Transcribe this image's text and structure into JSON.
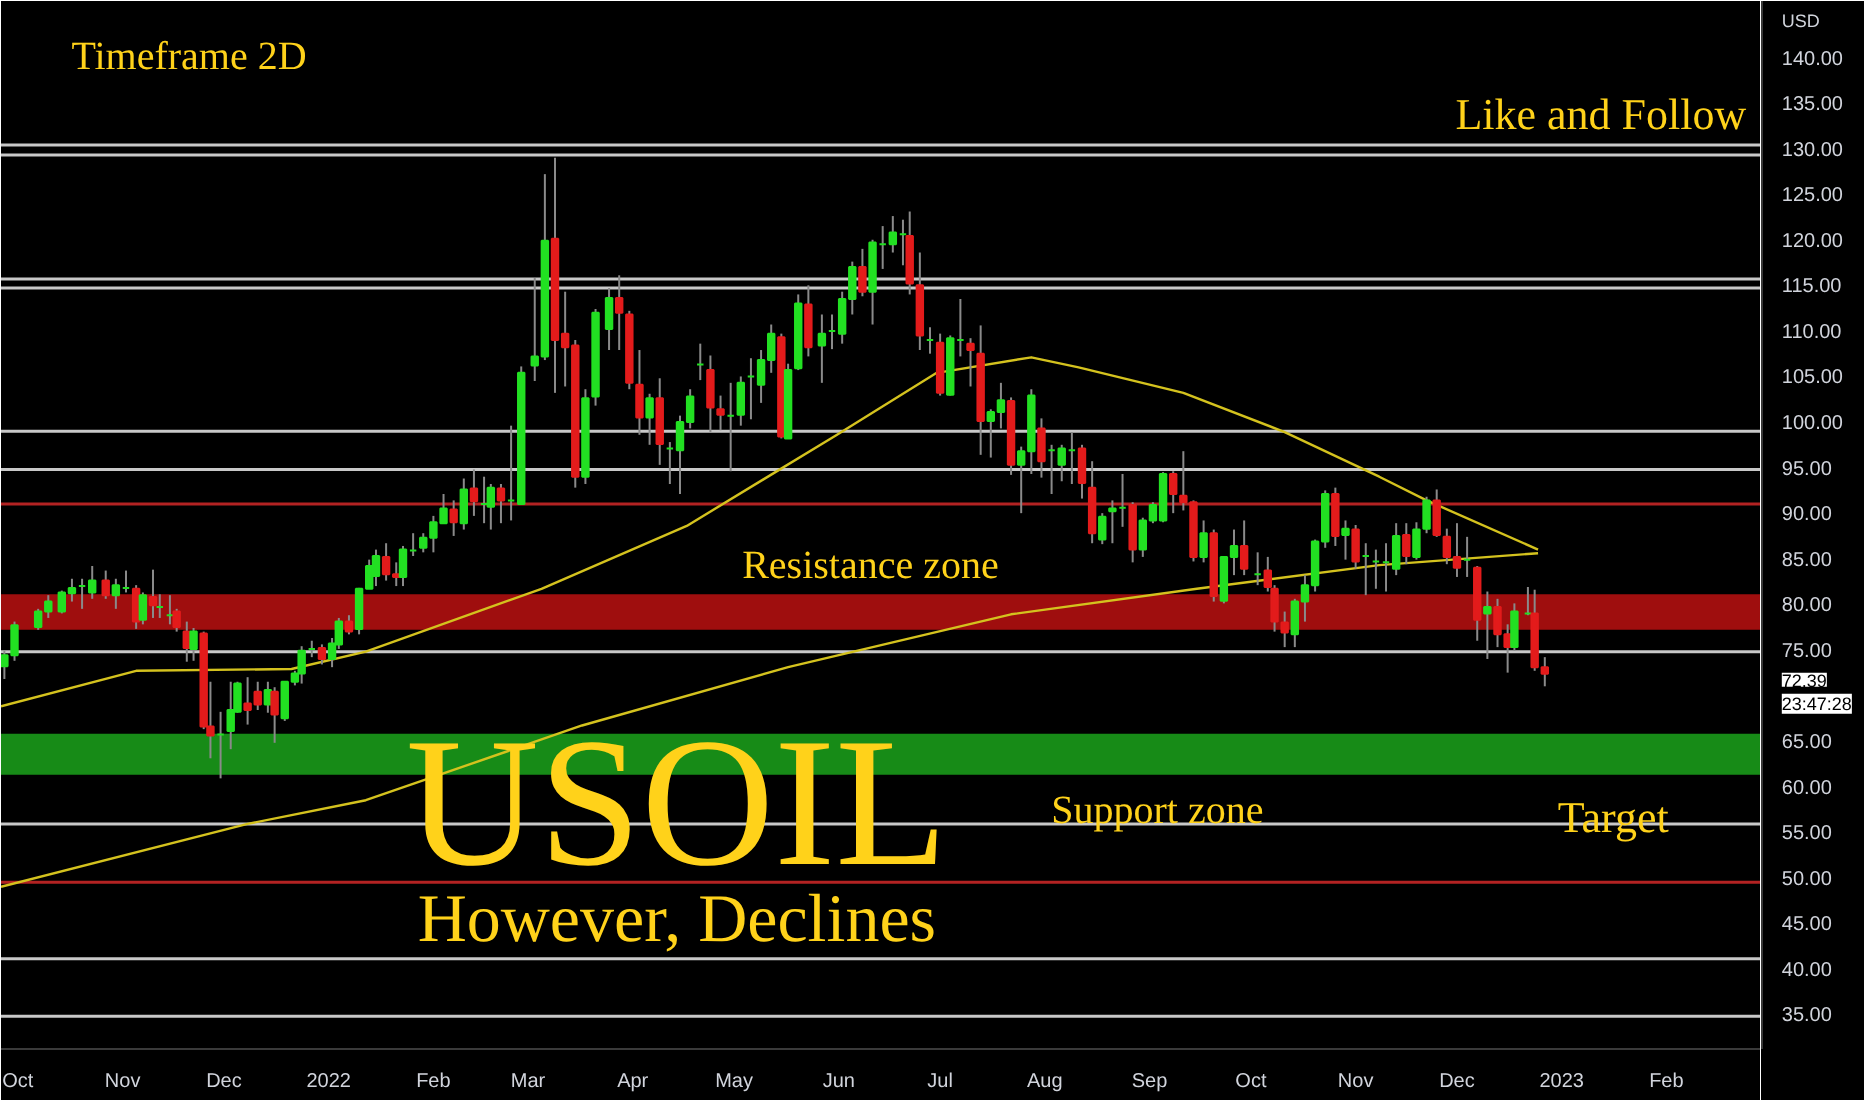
{
  "chart_data": {
    "type": "candlestick",
    "title": "USOIL",
    "subtitle": "However, Declines",
    "ylabel": "USD",
    "annotations": [
      "Timeframe 2D",
      "Like and Follow",
      "Target",
      "72.39",
      "23:47:28"
    ],
    "colors": [
      "#22e022",
      "#22e022",
      "#22e022",
      "#22e022",
      "#22e022",
      "#22e022",
      "#22e022",
      "#22e022",
      "#e31b1b",
      "#22e022",
      "#22e022",
      "#e31b1b",
      "#22e022",
      "#e31b1b",
      "#22e022",
      "#22e022",
      "#e31b1b",
      "#e31b1b",
      "#22e022",
      "#e31b1b",
      "#e31b1b",
      "#22e022",
      "#22e022",
      "#22e022",
      "#e31b1b",
      "#e31b1b",
      "#22e022",
      "#e31b1b",
      "#22e022",
      "#22e022",
      "#22e022",
      "#22e022",
      "#e31b1b",
      "#22e022",
      "#22e022",
      "#e31b1b",
      "#22e022",
      "#22e022",
      "#22e022",
      "#e31b1b",
      "#e31b1b",
      "#22e022",
      "#22e022",
      "#22e022",
      "#22e022",
      "#22e022",
      "#e31b1b",
      "#22e022",
      "#e31b1b",
      "#22e022",
      "#22e022",
      "#e31b1b",
      "#22e022",
      "#22e022",
      "#22e022",
      "#22e022",
      "#e31b1b",
      "#e31b1b",
      "#e31b1b",
      "#22e022",
      "#22e022",
      "#22e022",
      "#e31b1b",
      "#e31b1b",
      "#e31b1b",
      "#22e022",
      "#e31b1b",
      "#22e022",
      "#22e022",
      "#22e022",
      "#22e022",
      "#e31b1b",
      "#e31b1b",
      "#22e022",
      "#22e022",
      "#22e022",
      "#22e022",
      "#22e022",
      "#e31b1b",
      "#22e022",
      "#22e022",
      "#e31b1b",
      "#22e022",
      "#22e022",
      "#22e022",
      "#22e022",
      "#e31b1b",
      "#22e022",
      "#22e022",
      "#22e022",
      "#22e022",
      "#e31b1b",
      "#e31b1b",
      "#22e022",
      "#e31b1b",
      "#22e022",
      "#22e022",
      "#e31b1b",
      "#e31b1b",
      "#22e022",
      "#22e022",
      "#e31b1b",
      "#22e022",
      "#22e022",
      "#e31b1b",
      "#22e022",
      "#22e022",
      "#22e022",
      "#e31b1b",
      "#e31b1b",
      "#22e022",
      "#22e022",
      "#22e022",
      "#e31b1b",
      "#22e022",
      "#22e022",
      "#22e022",
      "#e31b1b",
      "#e31b1b",
      "#e31b1b",
      "#22e022",
      "#e31b1b",
      "#22e022",
      "#22e022",
      "#e31b1b",
      "#22e022",
      "#e31b1b",
      "#e31b1b",
      "#e31b1b",
      "#22e022",
      "#22e022",
      "#22e022",
      "#22e022",
      "#e31b1b",
      "#22e022",
      "#e31b1b",
      "#22e022",
      "#22e022",
      "#22e022",
      "#22e022",
      "#e31b1b",
      "#22e022",
      "#22e022",
      "#e31b1b",
      "#e31b1b",
      "#e31b1b",
      "#22e022",
      "#e31b1b",
      "#22e022",
      "#e31b1b",
      "#e31b1b",
      "#22e022",
      "#22e022",
      "#e31b1b",
      "#e31b1b"
    ],
    "xlim": [
      "2021-09-26",
      "2023-03-01"
    ],
    "ylim": [
      31.2,
      146.2
    ],
    "xticks": [
      {
        "value": "2021-10-01",
        "label": "Oct"
      },
      {
        "value": "2021-11-01",
        "label": "Nov"
      },
      {
        "value": "2021-12-01",
        "label": "Dec"
      },
      {
        "value": "2022-01-01",
        "label": "2022"
      },
      {
        "value": "2022-02-01",
        "label": "Feb"
      },
      {
        "value": "2022-03-01",
        "label": "Mar"
      },
      {
        "value": "2022-04-01",
        "label": "Apr"
      },
      {
        "value": "2022-05-01",
        "label": "May"
      },
      {
        "value": "2022-06-01",
        "label": "Jun"
      },
      {
        "value": "2022-07-01",
        "label": "Jul"
      },
      {
        "value": "2022-08-01",
        "label": "Aug"
      },
      {
        "value": "2022-09-01",
        "label": "Sep"
      },
      {
        "value": "2022-10-01",
        "label": "Oct"
      },
      {
        "value": "2022-11-01",
        "label": "Nov"
      },
      {
        "value": "2022-12-01",
        "label": "Dec"
      },
      {
        "value": "2023-01-01",
        "label": "2023"
      },
      {
        "value": "2023-02-01",
        "label": "Feb"
      }
    ],
    "yticks": [
      {
        "value": 35,
        "label": "35.00"
      },
      {
        "value": 40,
        "label": "40.00"
      },
      {
        "value": 45,
        "label": "45.00"
      },
      {
        "value": 50,
        "label": "50.00"
      },
      {
        "value": 55,
        "label": "55.00"
      },
      {
        "value": 60,
        "label": "60.00"
      },
      {
        "value": 65,
        "label": "65.00"
      },
      {
        "value": 75,
        "label": "75.00"
      },
      {
        "value": 80,
        "label": "80.00"
      },
      {
        "value": 85,
        "label": "85.00"
      },
      {
        "value": 90,
        "label": "90.00"
      },
      {
        "value": 95,
        "label": "95.00"
      },
      {
        "value": 100,
        "label": "100.00"
      },
      {
        "value": 105,
        "label": "105.00"
      },
      {
        "value": 110,
        "label": "110.00"
      },
      {
        "value": 115,
        "label": "115.00"
      },
      {
        "value": 120,
        "label": "120.00"
      },
      {
        "value": 125,
        "label": "125.00"
      },
      {
        "value": 130,
        "label": "130.00"
      },
      {
        "value": 135,
        "label": "135.00"
      },
      {
        "value": 140,
        "label": "140.00"
      }
    ],
    "grid": false,
    "x": [
      "2021-09-27",
      "2021-09-30",
      "2021-10-07",
      "2021-10-10",
      "2021-10-14",
      "2021-10-17",
      "2021-10-20",
      "2021-10-23",
      "2021-10-27",
      "2021-10-30",
      "2021-11-02",
      "2021-11-05",
      "2021-11-07",
      "2021-11-10",
      "2021-11-12",
      "2021-11-15",
      "2021-11-17",
      "2021-11-20",
      "2021-11-22",
      "2021-11-25",
      "2021-11-27",
      "2021-11-30",
      "2021-12-03",
      "2021-12-05",
      "2021-12-08",
      "2021-12-11",
      "2021-12-14",
      "2021-12-16",
      "2021-12-19",
      "2021-12-22",
      "2021-12-24",
      "2021-12-27",
      "2021-12-30",
      "2022-01-02",
      "2022-01-04",
      "2022-01-07",
      "2022-01-10",
      "2022-01-13",
      "2022-01-15",
      "2022-01-18",
      "2022-01-21",
      "2022-01-23",
      "2022-01-26",
      "2022-01-29",
      "2022-02-01",
      "2022-02-04",
      "2022-02-07",
      "2022-02-10",
      "2022-02-13",
      "2022-02-16",
      "2022-02-18",
      "2022-02-21",
      "2022-02-24",
      "2022-02-27",
      "2022-03-03",
      "2022-03-06",
      "2022-03-09",
      "2022-03-12",
      "2022-03-15",
      "2022-03-18",
      "2022-03-21",
      "2022-03-25",
      "2022-03-28",
      "2022-03-31",
      "2022-04-03",
      "2022-04-06",
      "2022-04-09",
      "2022-04-12",
      "2022-04-15",
      "2022-04-18",
      "2022-04-21",
      "2022-04-24",
      "2022-04-27",
      "2022-04-30",
      "2022-05-03",
      "2022-05-06",
      "2022-05-09",
      "2022-05-12",
      "2022-05-15",
      "2022-05-17",
      "2022-05-20",
      "2022-05-23",
      "2022-05-27",
      "2022-05-30",
      "2022-06-02",
      "2022-06-05",
      "2022-06-08",
      "2022-06-11",
      "2022-06-14",
      "2022-06-17",
      "2022-06-20",
      "2022-06-22",
      "2022-06-25",
      "2022-06-28",
      "2022-07-01",
      "2022-07-04",
      "2022-07-07",
      "2022-07-10",
      "2022-07-13",
      "2022-07-16",
      "2022-07-19",
      "2022-07-22",
      "2022-07-25",
      "2022-07-28",
      "2022-07-31",
      "2022-08-03",
      "2022-08-06",
      "2022-08-09",
      "2022-08-12",
      "2022-08-15",
      "2022-08-18",
      "2022-08-21",
      "2022-08-24",
      "2022-08-27",
      "2022-08-30",
      "2022-09-02",
      "2022-09-05",
      "2022-09-08",
      "2022-09-11",
      "2022-09-14",
      "2022-09-17",
      "2022-09-20",
      "2022-09-23",
      "2022-09-26",
      "2022-09-29",
      "2022-10-03",
      "2022-10-06",
      "2022-10-08",
      "2022-10-11",
      "2022-10-14",
      "2022-10-17",
      "2022-10-20",
      "2022-10-23",
      "2022-10-26",
      "2022-10-29",
      "2022-11-01",
      "2022-11-04",
      "2022-11-07",
      "2022-11-10",
      "2022-11-13",
      "2022-11-16",
      "2022-11-19",
      "2022-11-22",
      "2022-11-25",
      "2022-11-28",
      "2022-12-01",
      "2022-12-04",
      "2022-12-07",
      "2022-12-10",
      "2022-12-13",
      "2022-12-16",
      "2022-12-18",
      "2022-12-22",
      "2022-12-24",
      "2022-12-27"
    ],
    "ohlc": [
      [
        73.2,
        74.9,
        71.8,
        74.4
      ],
      [
        74.4,
        78.1,
        73.8,
        77.7
      ],
      [
        77.5,
        79.5,
        77.2,
        79.2
      ],
      [
        79.2,
        81,
        78.5,
        80.3
      ],
      [
        79.2,
        81.5,
        79,
        81.3
      ],
      [
        81.2,
        82.8,
        80.3,
        81.8
      ],
      [
        82,
        82.8,
        79.5,
        82
      ],
      [
        81.3,
        84.2,
        80.6,
        82.6
      ],
      [
        82.6,
        83.7,
        80.6,
        81
      ],
      [
        81,
        82.8,
        79.5,
        82.1
      ],
      [
        81.8,
        83.7,
        81.3,
        81.8
      ],
      [
        81.7,
        82.1,
        77.3,
        78.1
      ],
      [
        78.3,
        81.3,
        77.8,
        81
      ],
      [
        80.8,
        83.8,
        78.5,
        79.9
      ],
      [
        79.7,
        81.1,
        78.5,
        79.7
      ],
      [
        78.8,
        81,
        77.8,
        78.8
      ],
      [
        79.2,
        79.5,
        77,
        77.5
      ],
      [
        77,
        78.1,
        73.7,
        75.2
      ],
      [
        75.1,
        77.4,
        73.8,
        77
      ],
      [
        76.8,
        77,
        66.3,
        66.6
      ],
      [
        66.6,
        71.5,
        63.1,
        65.6
      ],
      [
        65.7,
        68.2,
        60.9,
        65.7
      ],
      [
        66.1,
        71.5,
        64.1,
        68.4
      ],
      [
        68.2,
        71.5,
        68.1,
        71.3
      ],
      [
        69.1,
        72,
        66.8,
        68.4
      ],
      [
        70.4,
        71.5,
        68.4,
        69
      ],
      [
        69,
        71.5,
        68.1,
        70.6
      ],
      [
        70.4,
        70.9,
        64.8,
        67.9
      ],
      [
        67.5,
        71.5,
        67.2,
        71.5
      ],
      [
        71.5,
        72.7,
        71.1,
        72.4
      ],
      [
        72.4,
        75.4,
        71.3,
        74.9
      ],
      [
        75.1,
        76,
        74.2,
        75.1
      ],
      [
        75.2,
        75.6,
        73.4,
        74
      ],
      [
        74,
        76.3,
        73.1,
        75.7
      ],
      [
        75.6,
        78.5,
        75.1,
        78.1
      ],
      [
        78.1,
        78.8,
        76.7,
        77
      ],
      [
        77.3,
        81.8,
        76.7,
        81.7
      ],
      [
        81.7,
        84.9,
        81.7,
        84.2
      ],
      [
        83.1,
        86,
        82,
        85.3
      ],
      [
        85.2,
        86.7,
        82.6,
        83.3
      ],
      [
        83.3,
        84.6,
        82,
        83
      ],
      [
        83,
        86.4,
        82,
        86
      ],
      [
        85.9,
        87.8,
        85.3,
        85.9
      ],
      [
        86.2,
        87.8,
        85.7,
        87.3
      ],
      [
        87.3,
        89.7,
        85.7,
        89
      ],
      [
        88.9,
        92.1,
        88.9,
        90.5
      ],
      [
        90.4,
        91.4,
        87.5,
        89
      ],
      [
        88.9,
        93.8,
        88.2,
        92.6
      ],
      [
        92.7,
        94.8,
        89.7,
        91.3
      ],
      [
        91,
        94,
        88.9,
        91
      ],
      [
        90.7,
        93.2,
        88.2,
        92.8
      ],
      [
        92.7,
        93.2,
        88.9,
        91.4
      ],
      [
        91.4,
        99.6,
        89.2,
        91.4
      ],
      [
        91,
        106.1,
        91,
        105.4
      ],
      [
        106.2,
        115.8,
        104.5,
        107.2
      ],
      [
        107.2,
        127.2,
        106.8,
        119.9
      ],
      [
        120.1,
        129,
        103.2,
        109
      ],
      [
        109.7,
        114.3,
        103.9,
        108.2
      ],
      [
        108.4,
        109,
        92.8,
        94
      ],
      [
        94,
        103.6,
        93.2,
        102.6
      ],
      [
        102.8,
        112.4,
        101.8,
        112
      ],
      [
        110.2,
        114.7,
        107.9,
        113.6
      ],
      [
        113.6,
        116.1,
        107.9,
        112
      ],
      [
        111.8,
        112.2,
        103.6,
        104.3
      ],
      [
        104.1,
        107.9,
        98.6,
        100.5
      ],
      [
        100.5,
        103.1,
        97.5,
        102.6
      ],
      [
        102.6,
        104.8,
        95.3,
        97.6
      ],
      [
        97.1,
        97.8,
        93.2,
        97.1
      ],
      [
        96.9,
        100.7,
        92.1,
        100
      ],
      [
        100,
        103.6,
        99.3,
        102.8
      ],
      [
        106.3,
        108.6,
        104.6,
        106.3
      ],
      [
        105.7,
        107.3,
        98.9,
        101.6
      ],
      [
        101.4,
        102.9,
        99.1,
        100.8
      ],
      [
        100.7,
        104.3,
        94.6,
        100.7
      ],
      [
        100.8,
        105,
        99.6,
        104.3
      ],
      [
        105,
        107,
        100.3,
        105
      ],
      [
        104.1,
        107.9,
        102.1,
        106.8
      ],
      [
        106.8,
        110.7,
        105.4,
        109.7
      ],
      [
        109.3,
        109.7,
        98.2,
        98.4
      ],
      [
        98.2,
        106.4,
        98.2,
        105.7
      ],
      [
        105.9,
        114,
        105.7,
        113
      ],
      [
        112.9,
        115,
        107.2,
        108.2
      ],
      [
        108.4,
        111.8,
        104.3,
        109.7
      ],
      [
        110,
        111.8,
        108,
        110
      ],
      [
        109.7,
        114.3,
        108.6,
        113.5
      ],
      [
        113.5,
        117.6,
        111.8,
        117
      ],
      [
        117,
        119,
        113.8,
        114.3
      ],
      [
        114.3,
        120,
        110.7,
        119.7
      ],
      [
        119.5,
        121.5,
        116.8,
        119.5
      ],
      [
        119.5,
        122.6,
        118.6,
        120.8
      ],
      [
        120.6,
        122.2,
        117.2,
        120.6
      ],
      [
        120.4,
        123.1,
        114,
        115.2
      ],
      [
        115,
        118.6,
        107.9,
        109.5
      ],
      [
        109,
        110.4,
        107.5,
        109
      ],
      [
        108.7,
        109.7,
        102.9,
        103.2
      ],
      [
        103,
        109.5,
        102.9,
        109.2
      ],
      [
        109,
        113.5,
        107.2,
        109
      ],
      [
        108.6,
        109.2,
        103.9,
        107.9
      ],
      [
        107.5,
        110.6,
        96.4,
        100.1
      ],
      [
        100.1,
        101.4,
        96.1,
        101.1
      ],
      [
        101.1,
        104.3,
        99.3,
        102.4
      ],
      [
        102.3,
        102.7,
        94.2,
        95.3
      ],
      [
        95.3,
        97.3,
        90,
        96.8
      ],
      [
        96.8,
        103.6,
        94.3,
        102.9
      ],
      [
        99.3,
        100.4,
        93.9,
        95.7
      ],
      [
        96.9,
        97.5,
        92.1,
        96.9
      ],
      [
        95.3,
        97.5,
        93.5,
        97.1
      ],
      [
        96.9,
        98.9,
        93.2,
        96.9
      ],
      [
        97.1,
        97.5,
        91.6,
        93.3
      ],
      [
        92.8,
        95.7,
        86.7,
        87.8
      ],
      [
        87.1,
        90,
        86.6,
        89.6
      ],
      [
        90.2,
        91.4,
        86.7,
        90.5
      ],
      [
        90.6,
        94.3,
        88.5,
        90.6
      ],
      [
        90.9,
        91.2,
        84.6,
        86
      ],
      [
        86,
        89.5,
        85.2,
        89.2
      ],
      [
        89.2,
        91.2,
        88.9,
        90.9
      ],
      [
        89.2,
        94.5,
        89,
        94.3
      ],
      [
        94.3,
        94.6,
        90,
        92.1
      ],
      [
        91.9,
        96.8,
        90.3,
        91.2
      ],
      [
        91.2,
        91.4,
        84.7,
        85.2
      ],
      [
        85.2,
        89.2,
        84.6,
        87.8
      ],
      [
        87.8,
        88.2,
        80.3,
        80.9
      ],
      [
        80.4,
        85.3,
        80.1,
        85.2
      ],
      [
        85.2,
        88.2,
        83.2,
        86.4
      ],
      [
        86.4,
        89.2,
        83.2,
        83.9
      ],
      [
        83.3,
        85.7,
        82.1,
        83.3
      ],
      [
        83.7,
        85.2,
        81.4,
        81.9
      ],
      [
        81.7,
        82.1,
        77,
        78.1
      ],
      [
        78,
        79.2,
        75.3,
        76.9
      ],
      [
        76.7,
        80.6,
        75.3,
        80.3
      ],
      [
        80.3,
        83.2,
        78.1,
        82.1
      ],
      [
        82.1,
        87.1,
        81.4,
        86.9
      ],
      [
        86.9,
        92.5,
        86.2,
        92.1
      ],
      [
        92.1,
        92.8,
        86.4,
        87.5
      ],
      [
        87.6,
        89.2,
        84.9,
        88.3
      ],
      [
        88.2,
        88.7,
        83.9,
        84.7
      ],
      [
        85.3,
        86.7,
        81,
        85.3
      ],
      [
        84.7,
        86,
        81.7,
        84.7
      ],
      [
        84.6,
        86.7,
        81.4,
        84.6
      ],
      [
        83.9,
        88.9,
        83.2,
        87.5
      ],
      [
        87.6,
        88.9,
        84.4,
        85.3
      ],
      [
        85.2,
        89,
        84.9,
        88.2
      ],
      [
        88.3,
        91.8,
        87.8,
        91.4
      ],
      [
        91.4,
        92.6,
        87.4,
        87.6
      ],
      [
        87.4,
        88.3,
        84.4,
        85.2
      ],
      [
        85.2,
        88.9,
        83,
        84
      ],
      [
        84.9,
        87.4,
        83,
        84.9
      ],
      [
        84,
        84.2,
        76,
        78.3
      ],
      [
        79,
        81.4,
        74,
        79.7
      ],
      [
        79.7,
        80.6,
        75.3,
        76.7
      ],
      [
        76.7,
        77.8,
        72.5,
        75.3
      ],
      [
        75.3,
        80.1,
        74.9,
        79.2
      ],
      [
        79,
        81.9,
        78.8,
        79
      ],
      [
        79,
        81.6,
        72.7,
        73.1
      ],
      [
        73.1,
        74.2,
        71,
        72.39
      ]
    ],
    "series": [
      {
        "type": "line",
        "color": "#d4c21e",
        "x": [
          "2021-09-26",
          "2021-11-05",
          "2021-12-21",
          "2022-01-12",
          "2022-03-05",
          "2022-04-17",
          "2022-05-31",
          "2022-06-30",
          "2022-07-28",
          "2022-08-11",
          "2022-09-11",
          "2022-10-11",
          "2022-11-08",
          "2022-11-22",
          "2022-12-25"
        ],
        "values": [
          68.8,
          72.7,
          72.9,
          74.8,
          81.7,
          88.6,
          98.5,
          105.4,
          107.1,
          106,
          103.2,
          98.9,
          94,
          91.4,
          86
        ]
      },
      {
        "type": "line",
        "color": "#d4c21e",
        "x": [
          "2021-09-26",
          "2021-12-08",
          "2022-01-12",
          "2022-03-17",
          "2022-05-17",
          "2022-07-22",
          "2022-09-15",
          "2022-11-08",
          "2022-12-25"
        ],
        "values": [
          49,
          55.9,
          58.5,
          66.7,
          73.1,
          78.9,
          81.7,
          84.3,
          85.6
        ]
      }
    ],
    "ref_lines": [
      {
        "axis": "y",
        "value": 130.4,
        "color": "#c8c8c8"
      },
      {
        "axis": "y",
        "value": 129.3,
        "color": "#c8c8c8"
      },
      {
        "axis": "y",
        "value": 115.7,
        "color": "#c8c8c8"
      },
      {
        "axis": "y",
        "value": 114.7,
        "color": "#c8c8c8"
      },
      {
        "axis": "y",
        "value": 99,
        "color": "#c8c8c8"
      },
      {
        "axis": "y",
        "value": 94.8,
        "color": "#c8c8c8"
      },
      {
        "axis": "y",
        "value": 91,
        "color": "#b22222"
      },
      {
        "axis": "y",
        "value": 74.8,
        "color": "#c8c8c8"
      },
      {
        "axis": "y",
        "value": 55.9,
        "color": "#c8c8c8"
      },
      {
        "axis": "y",
        "value": 49.5,
        "color": "#b22222"
      },
      {
        "axis": "y",
        "value": 41.1,
        "color": "#c8c8c8"
      },
      {
        "axis": "y",
        "value": 34.8,
        "color": "#c8c8c8"
      }
    ],
    "bands": [
      {
        "axis": "y",
        "from": 77.2,
        "to": 81.1,
        "label": "Resistance zone",
        "color": "#b01010"
      },
      {
        "axis": "y",
        "from": 61.3,
        "to": 65.8,
        "label": "Support zone",
        "color": "#1a9a1a"
      }
    ]
  }
}
